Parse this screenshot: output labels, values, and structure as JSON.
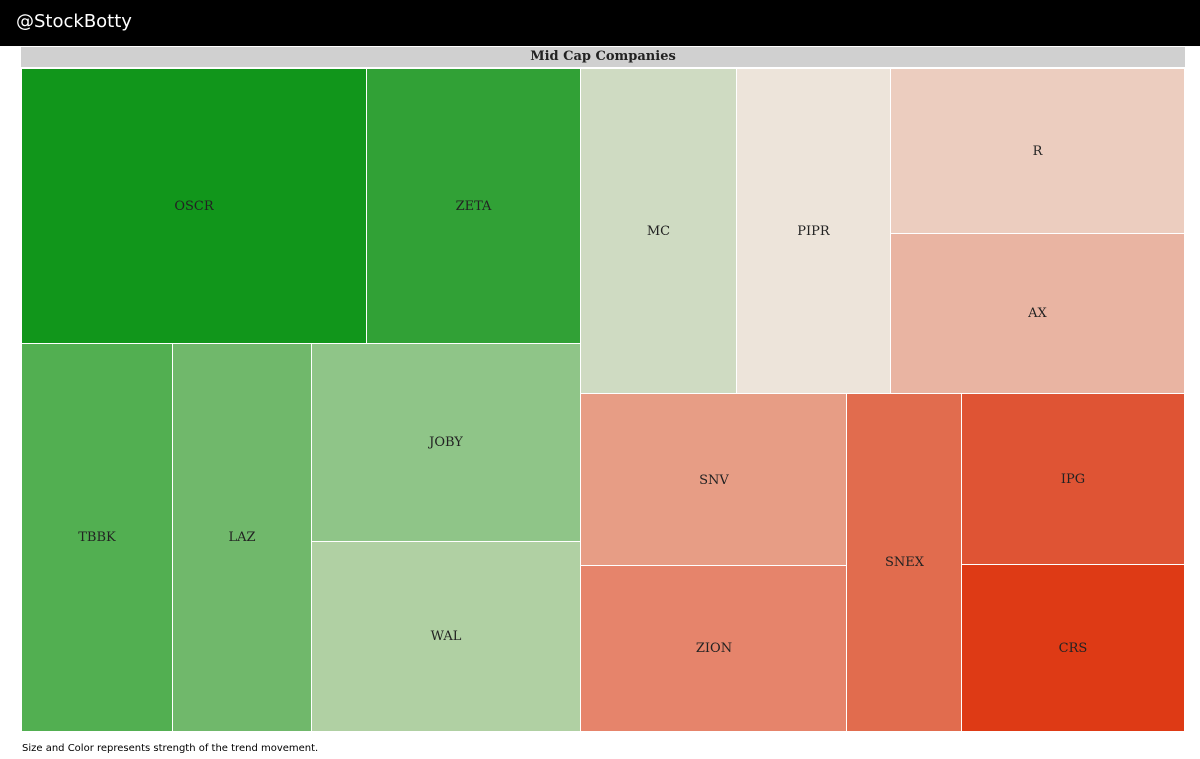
{
  "header": {
    "brand": "@StockBotty"
  },
  "footer": {
    "note": "Size and Color represents strength of the trend movement."
  },
  "chart_data": {
    "type": "treemap",
    "title": "Mid Cap Companies",
    "items": [
      {
        "label": "OSCR",
        "color": "#11961b"
      },
      {
        "label": "ZETA",
        "color": "#31a136"
      },
      {
        "label": "MC",
        "color": "#cfdbc2"
      },
      {
        "label": "PIPR",
        "color": "#ede4da"
      },
      {
        "label": "R",
        "color": "#eccdbf"
      },
      {
        "label": "AX",
        "color": "#e9b4a2"
      },
      {
        "label": "TBBK",
        "color": "#52af51"
      },
      {
        "label": "LAZ",
        "color": "#70b86b"
      },
      {
        "label": "JOBY",
        "color": "#8fc588"
      },
      {
        "label": "WAL",
        "color": "#b0d0a3"
      },
      {
        "label": "SNV",
        "color": "#e79d85"
      },
      {
        "label": "ZION",
        "color": "#e6846b"
      },
      {
        "label": "SNEX",
        "color": "#e16c4e"
      },
      {
        "label": "IPG",
        "color": "#df5434"
      },
      {
        "label": "CRS",
        "color": "#de3a15"
      }
    ]
  }
}
